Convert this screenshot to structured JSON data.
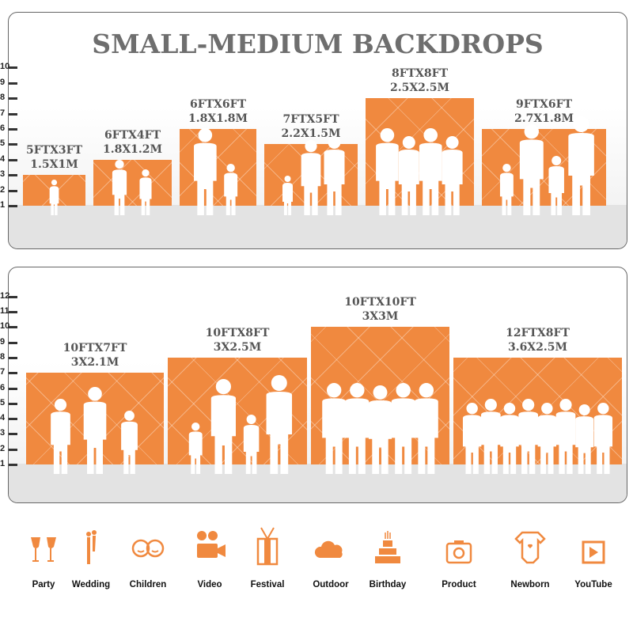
{
  "top_panel": {
    "title": "SMALL-MEDIUM BACKDROPS",
    "scale": [
      "10",
      "9",
      "8",
      "7",
      "6",
      "5",
      "4",
      "3",
      "2",
      "1"
    ],
    "sizes": [
      {
        "ft": "5FTX3FT",
        "m": "1.5X1M",
        "height_ft": 3
      },
      {
        "ft": "6FTX4FT",
        "m": "1.8X1.2M",
        "height_ft": 4
      },
      {
        "ft": "6FTX6FT",
        "m": "1.8X1.8M",
        "height_ft": 6
      },
      {
        "ft": "7FTX5FT",
        "m": "2.2X1.5M",
        "height_ft": 5
      },
      {
        "ft": "8FTX8FT",
        "m": "2.5X2.5M",
        "height_ft": 8
      },
      {
        "ft": "9FTX6FT",
        "m": "2.7X1.8M",
        "height_ft": 6
      }
    ]
  },
  "bottom_panel": {
    "scale": [
      "12",
      "11",
      "10",
      "9",
      "8",
      "7",
      "6",
      "5",
      "4",
      "3",
      "2",
      "1"
    ],
    "sizes": [
      {
        "ft": "10FTX7FT",
        "m": "3X2.1M",
        "height_ft": 7
      },
      {
        "ft": "10FTX8FT",
        "m": "3X2.5M",
        "height_ft": 8
      },
      {
        "ft": "10FTX10FT",
        "m": "3X3M",
        "height_ft": 10
      },
      {
        "ft": "12FTX8FT",
        "m": "3.6X2.5M",
        "height_ft": 8
      }
    ]
  },
  "colors": {
    "backdrop": "#f0893f",
    "title": "#6e6e6e",
    "icon": "#f0893f"
  },
  "uses": [
    {
      "label": "Party",
      "icon": "champagne-glasses-icon"
    },
    {
      "label": "Wedding",
      "icon": "wedding-couple-icon"
    },
    {
      "label": "Children",
      "icon": "children-faces-icon"
    },
    {
      "label": "Video",
      "icon": "video-camera-icon"
    },
    {
      "label": "Festival",
      "icon": "gift-box-icon"
    },
    {
      "label": "Outdoor",
      "icon": "cloud-icon"
    },
    {
      "label": "Birthday",
      "icon": "birthday-cake-icon"
    },
    {
      "label": "Product",
      "icon": "camera-icon"
    },
    {
      "label": "Newborn",
      "icon": "baby-onesie-icon"
    },
    {
      "label": "YouTube",
      "icon": "play-button-icon"
    }
  ]
}
